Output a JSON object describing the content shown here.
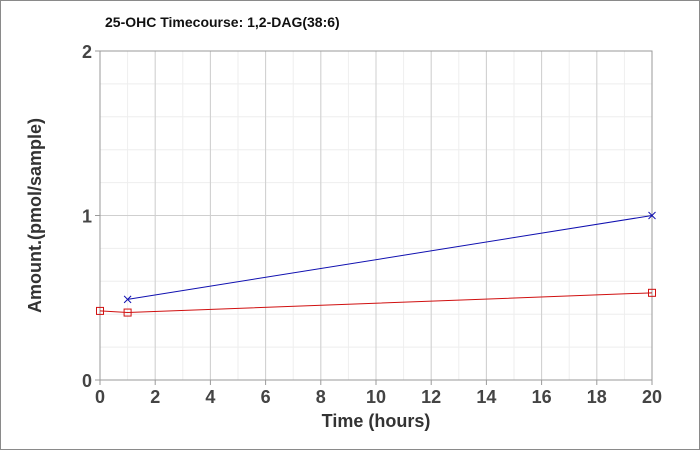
{
  "chart_data": {
    "type": "line",
    "title": "25-OHC Timecourse: 1,2-DAG(38:6)",
    "xlabel": "Time (hours)",
    "ylabel": "Amount.(pmol/sample)",
    "xlim": [
      0,
      20
    ],
    "ylim": [
      0,
      2
    ],
    "xticks": [
      0,
      2,
      4,
      6,
      8,
      10,
      12,
      14,
      16,
      18,
      20
    ],
    "yticks": [
      0,
      1,
      2
    ],
    "grid": true,
    "legend": "none",
    "series": [
      {
        "color": "#1010b0",
        "marker": "x",
        "x": [
          1,
          20
        ],
        "y": [
          0.49,
          1.0
        ]
      },
      {
        "color": "#d01010",
        "marker": "square",
        "x": [
          0,
          1,
          20
        ],
        "y": [
          0.42,
          0.41,
          0.53
        ]
      }
    ]
  }
}
